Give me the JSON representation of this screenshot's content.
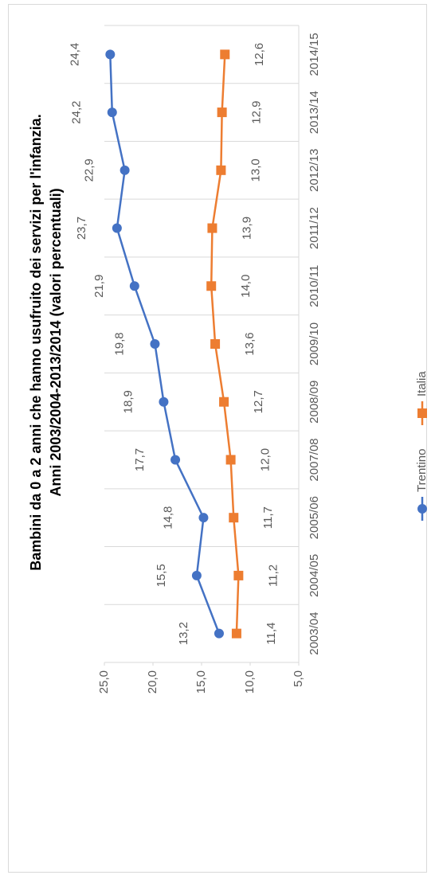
{
  "chart_data": {
    "type": "line",
    "title": "Bambini da 0 a 2 anni che hanno usufruito dei servizi per l'infanzia.",
    "subtitle": "Anni 2003/2004-2013/2014  (valori percentuali)",
    "categories": [
      "2003/04",
      "2004/05",
      "2005/06",
      "2007/08",
      "2008/09",
      "2009/10",
      "2010/11",
      "2011/12",
      "2012/13",
      "2013/14",
      "2014/15"
    ],
    "series": [
      {
        "name": "Trentino",
        "color": "#4472c4",
        "marker": "circle",
        "values": [
          13.2,
          15.5,
          14.8,
          17.7,
          18.9,
          19.8,
          21.9,
          23.7,
          22.9,
          24.2,
          24.4
        ],
        "value_labels": [
          "13,2",
          "15,5",
          "14,8",
          "17,7",
          "18,9",
          "19,8",
          "21,9",
          "23,7",
          "22,9",
          "24,2",
          "24,4"
        ]
      },
      {
        "name": "Italia",
        "color": "#ed7d31",
        "marker": "square",
        "values": [
          11.4,
          11.2,
          11.7,
          12.0,
          12.7,
          13.6,
          14.0,
          13.9,
          13.0,
          12.9,
          12.6
        ],
        "value_labels": [
          "11,4",
          "11,2",
          "11,7",
          "12,0",
          "12,7",
          "13,6",
          "14,0",
          "13,9",
          "13,0",
          "12,9",
          "12,6"
        ]
      }
    ],
    "ylim": [
      5,
      25
    ],
    "yticks": [
      {
        "value": 5,
        "label": "5,0"
      },
      {
        "value": 10,
        "label": "10,0"
      },
      {
        "value": 15,
        "label": "15,0"
      },
      {
        "value": 20,
        "label": "20,0"
      },
      {
        "value": 25,
        "label": "25,0"
      }
    ],
    "legend": "bottom"
  }
}
